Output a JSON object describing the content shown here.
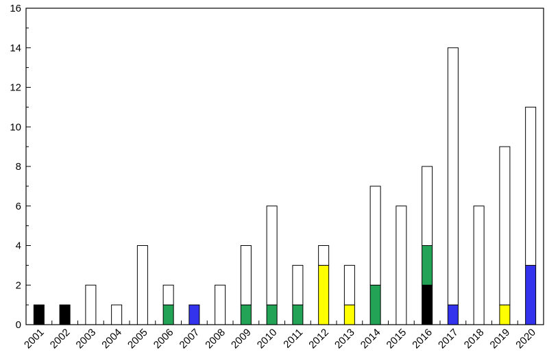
{
  "chart_data": {
    "type": "bar",
    "stacked": true,
    "title": "",
    "xlabel": "",
    "ylabel": "",
    "ylim": [
      0,
      16
    ],
    "yticks": [
      0,
      2,
      4,
      6,
      8,
      10,
      12,
      14,
      16
    ],
    "grid": false,
    "legend": "none",
    "categories": [
      "2001",
      "2002",
      "2003",
      "2004",
      "2005",
      "2006",
      "2007",
      "2008",
      "2009",
      "2010",
      "2011",
      "2012",
      "2013",
      "2014",
      "2015",
      "2016",
      "2017",
      "2018",
      "2019",
      "2020"
    ],
    "series": [
      {
        "color": "#000000",
        "values": [
          1,
          1,
          0,
          0,
          0,
          0,
          0,
          0,
          0,
          0,
          0,
          0,
          0,
          0,
          0,
          2,
          0,
          0,
          0,
          0
        ]
      },
      {
        "color": "#22a355",
        "values": [
          0,
          0,
          0,
          0,
          0,
          1,
          0,
          0,
          1,
          1,
          1,
          0,
          0,
          2,
          0,
          2,
          0,
          0,
          0,
          0
        ]
      },
      {
        "color": "#ffff00",
        "values": [
          0,
          0,
          0,
          0,
          0,
          0,
          0,
          0,
          0,
          0,
          0,
          3,
          1,
          0,
          0,
          0,
          0,
          0,
          1,
          0
        ]
      },
      {
        "color": "#3333ee",
        "values": [
          0,
          0,
          0,
          0,
          0,
          0,
          1,
          0,
          0,
          0,
          0,
          0,
          0,
          0,
          0,
          0,
          1,
          0,
          0,
          3
        ]
      },
      {
        "color": "#ffffff",
        "values": [
          0,
          0,
          2,
          1,
          4,
          1,
          0,
          2,
          3,
          5,
          2,
          1,
          2,
          5,
          6,
          4,
          13,
          6,
          8,
          8
        ]
      }
    ]
  }
}
